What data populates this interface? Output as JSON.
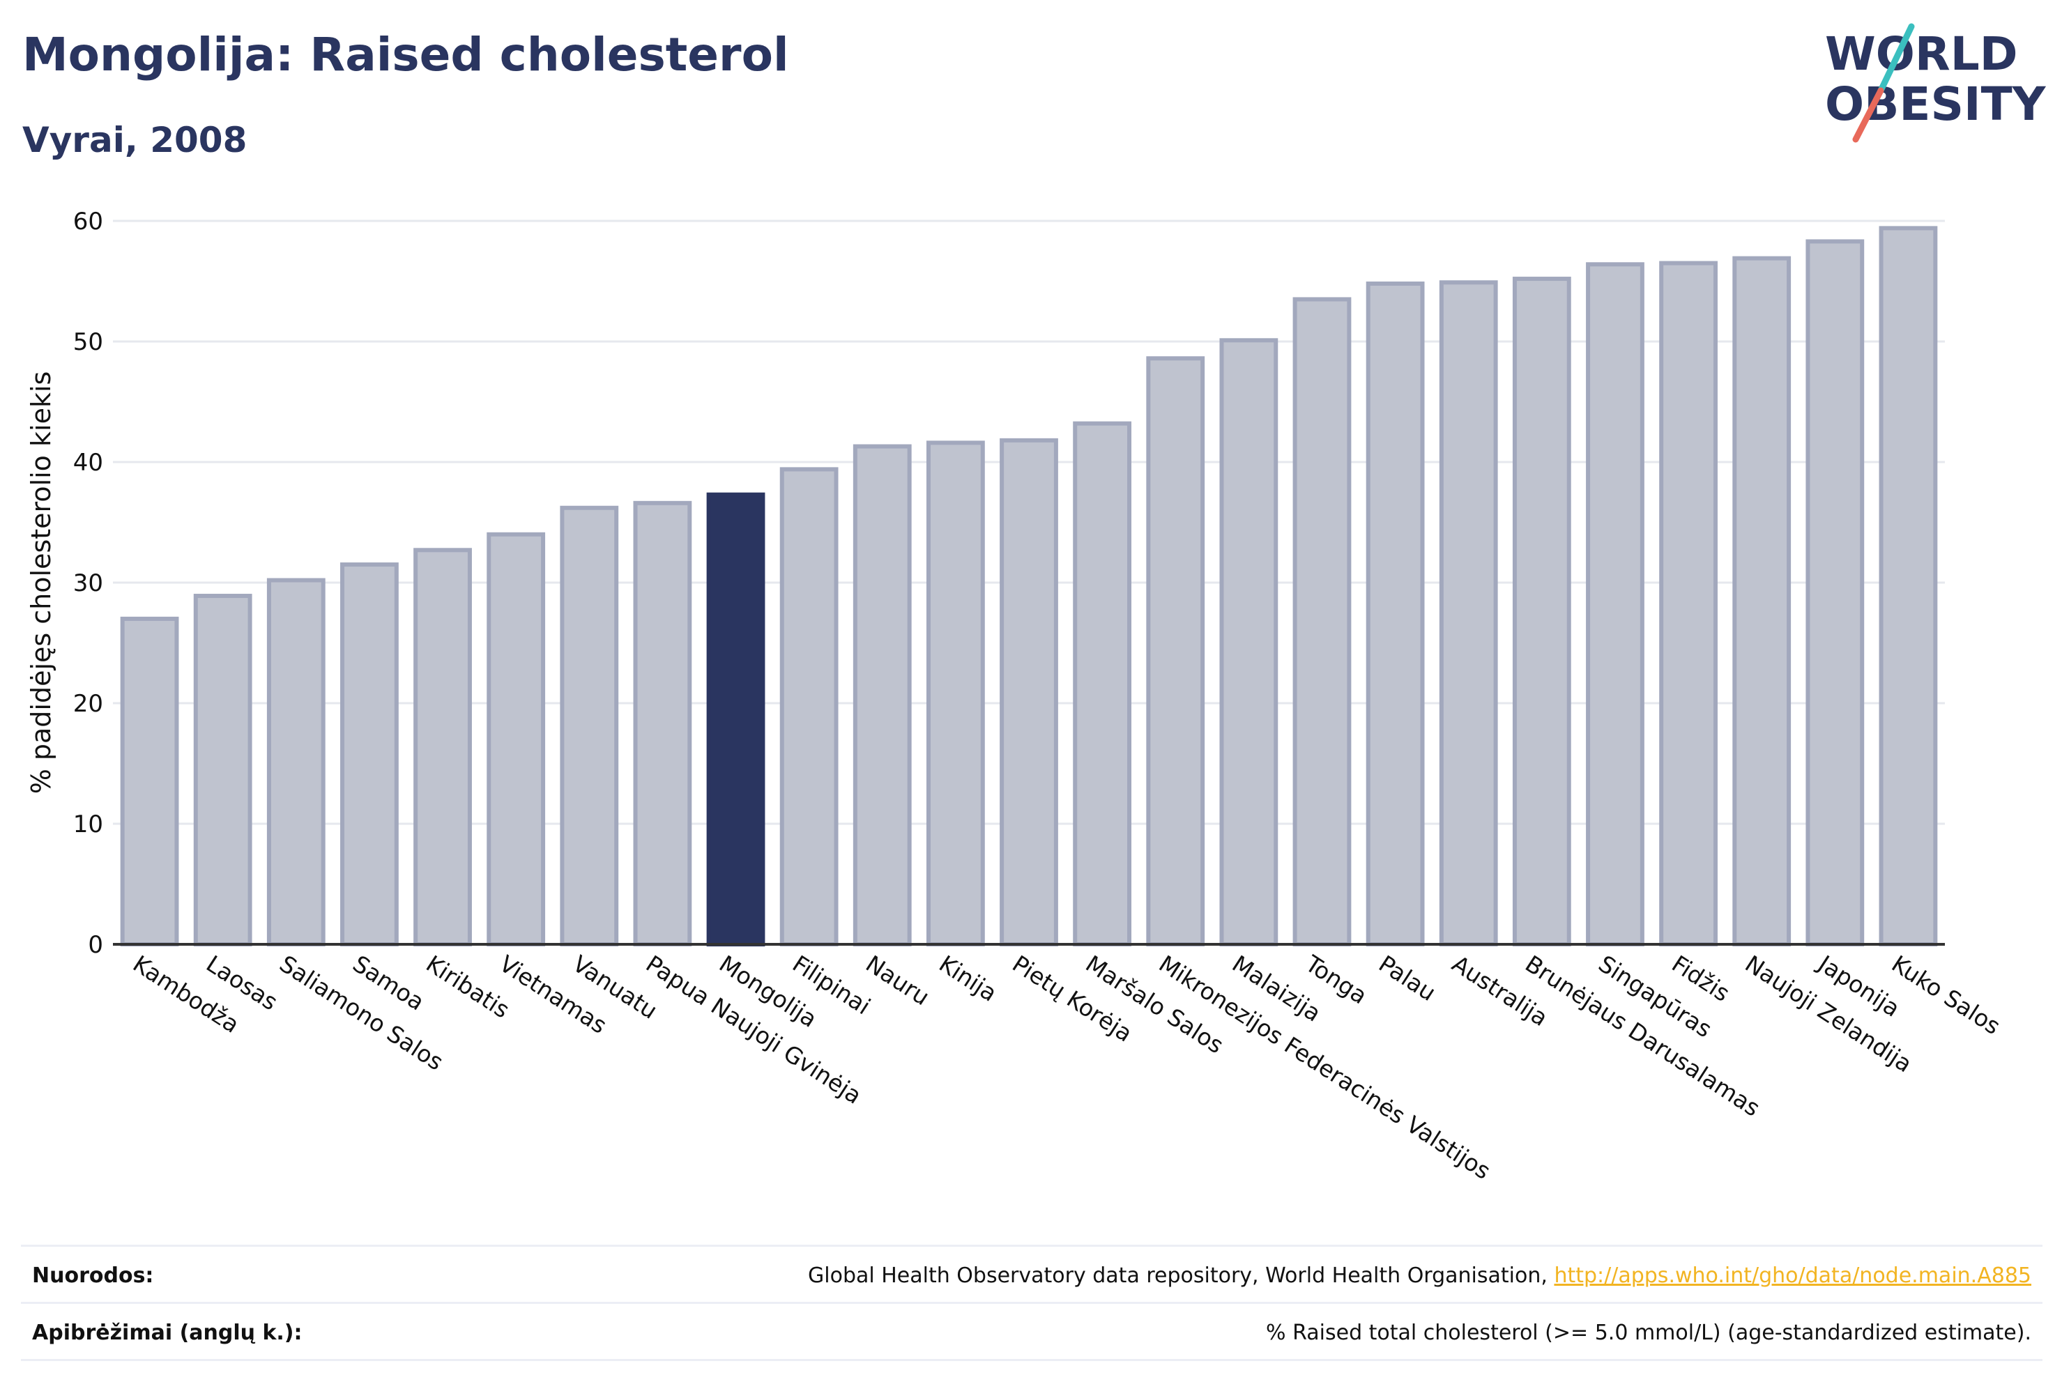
{
  "header": {
    "title": "Mongolija: Raised cholesterol",
    "subtitle": "Vyrai, 2008"
  },
  "logo": {
    "line1": "WORLD",
    "line2": "OBESITY",
    "text_color": "#2a3560",
    "slash_teal": "#3bbfbf",
    "slash_red": "#e8695a"
  },
  "chart_data": {
    "type": "bar",
    "ylabel": "% padidėjęs cholesterolio kiekis",
    "xlabel": "",
    "ylim": [
      0,
      60
    ],
    "yticks": [
      0,
      10,
      20,
      30,
      40,
      50,
      60
    ],
    "grid": true,
    "highlight": "Mongolija",
    "colors": {
      "bar": "#bfc3cf",
      "bar_edge": "#a2a8bd",
      "highlight": "#2a3560",
      "grid": "#e6e8ee",
      "axis": "#333333"
    },
    "categories": [
      "Kambodža",
      "Laosas",
      "Saliamono Salos",
      "Samoa",
      "Kiribatis",
      "Vietnamas",
      "Vanuatu",
      "Papua Naujoji Gvinėja",
      "Mongolija",
      "Filipinai",
      "Nauru",
      "Kinija",
      "Pietų Korėja",
      "Maršalo Salos",
      "Mikronezijos Federacinės Valstijos",
      "Malaizija",
      "Tonga",
      "Palau",
      "Australija",
      "Brunėjaus Darusalamas",
      "Singapūras",
      "Fidžis",
      "Naujoji Zelandija",
      "Japonija",
      "Kuko Salos"
    ],
    "values": [
      27.0,
      28.9,
      30.2,
      31.5,
      32.7,
      34.0,
      36.2,
      36.6,
      37.3,
      39.4,
      41.3,
      41.6,
      41.8,
      43.2,
      48.6,
      50.1,
      53.5,
      54.8,
      54.9,
      55.2,
      56.4,
      56.5,
      56.9,
      58.3,
      59.4
    ]
  },
  "footer": {
    "references_label": "Nuorodos:",
    "references_text": "Global Health Observatory data repository, World Health Organisation, ",
    "references_link": "http://apps.who.int/gho/data/node.main.A885",
    "definitions_label": "Apibrėžimai (anglų k.):",
    "definitions_text": "% Raised total cholesterol (>= 5.0 mmol/L) (age-standardized estimate)."
  }
}
